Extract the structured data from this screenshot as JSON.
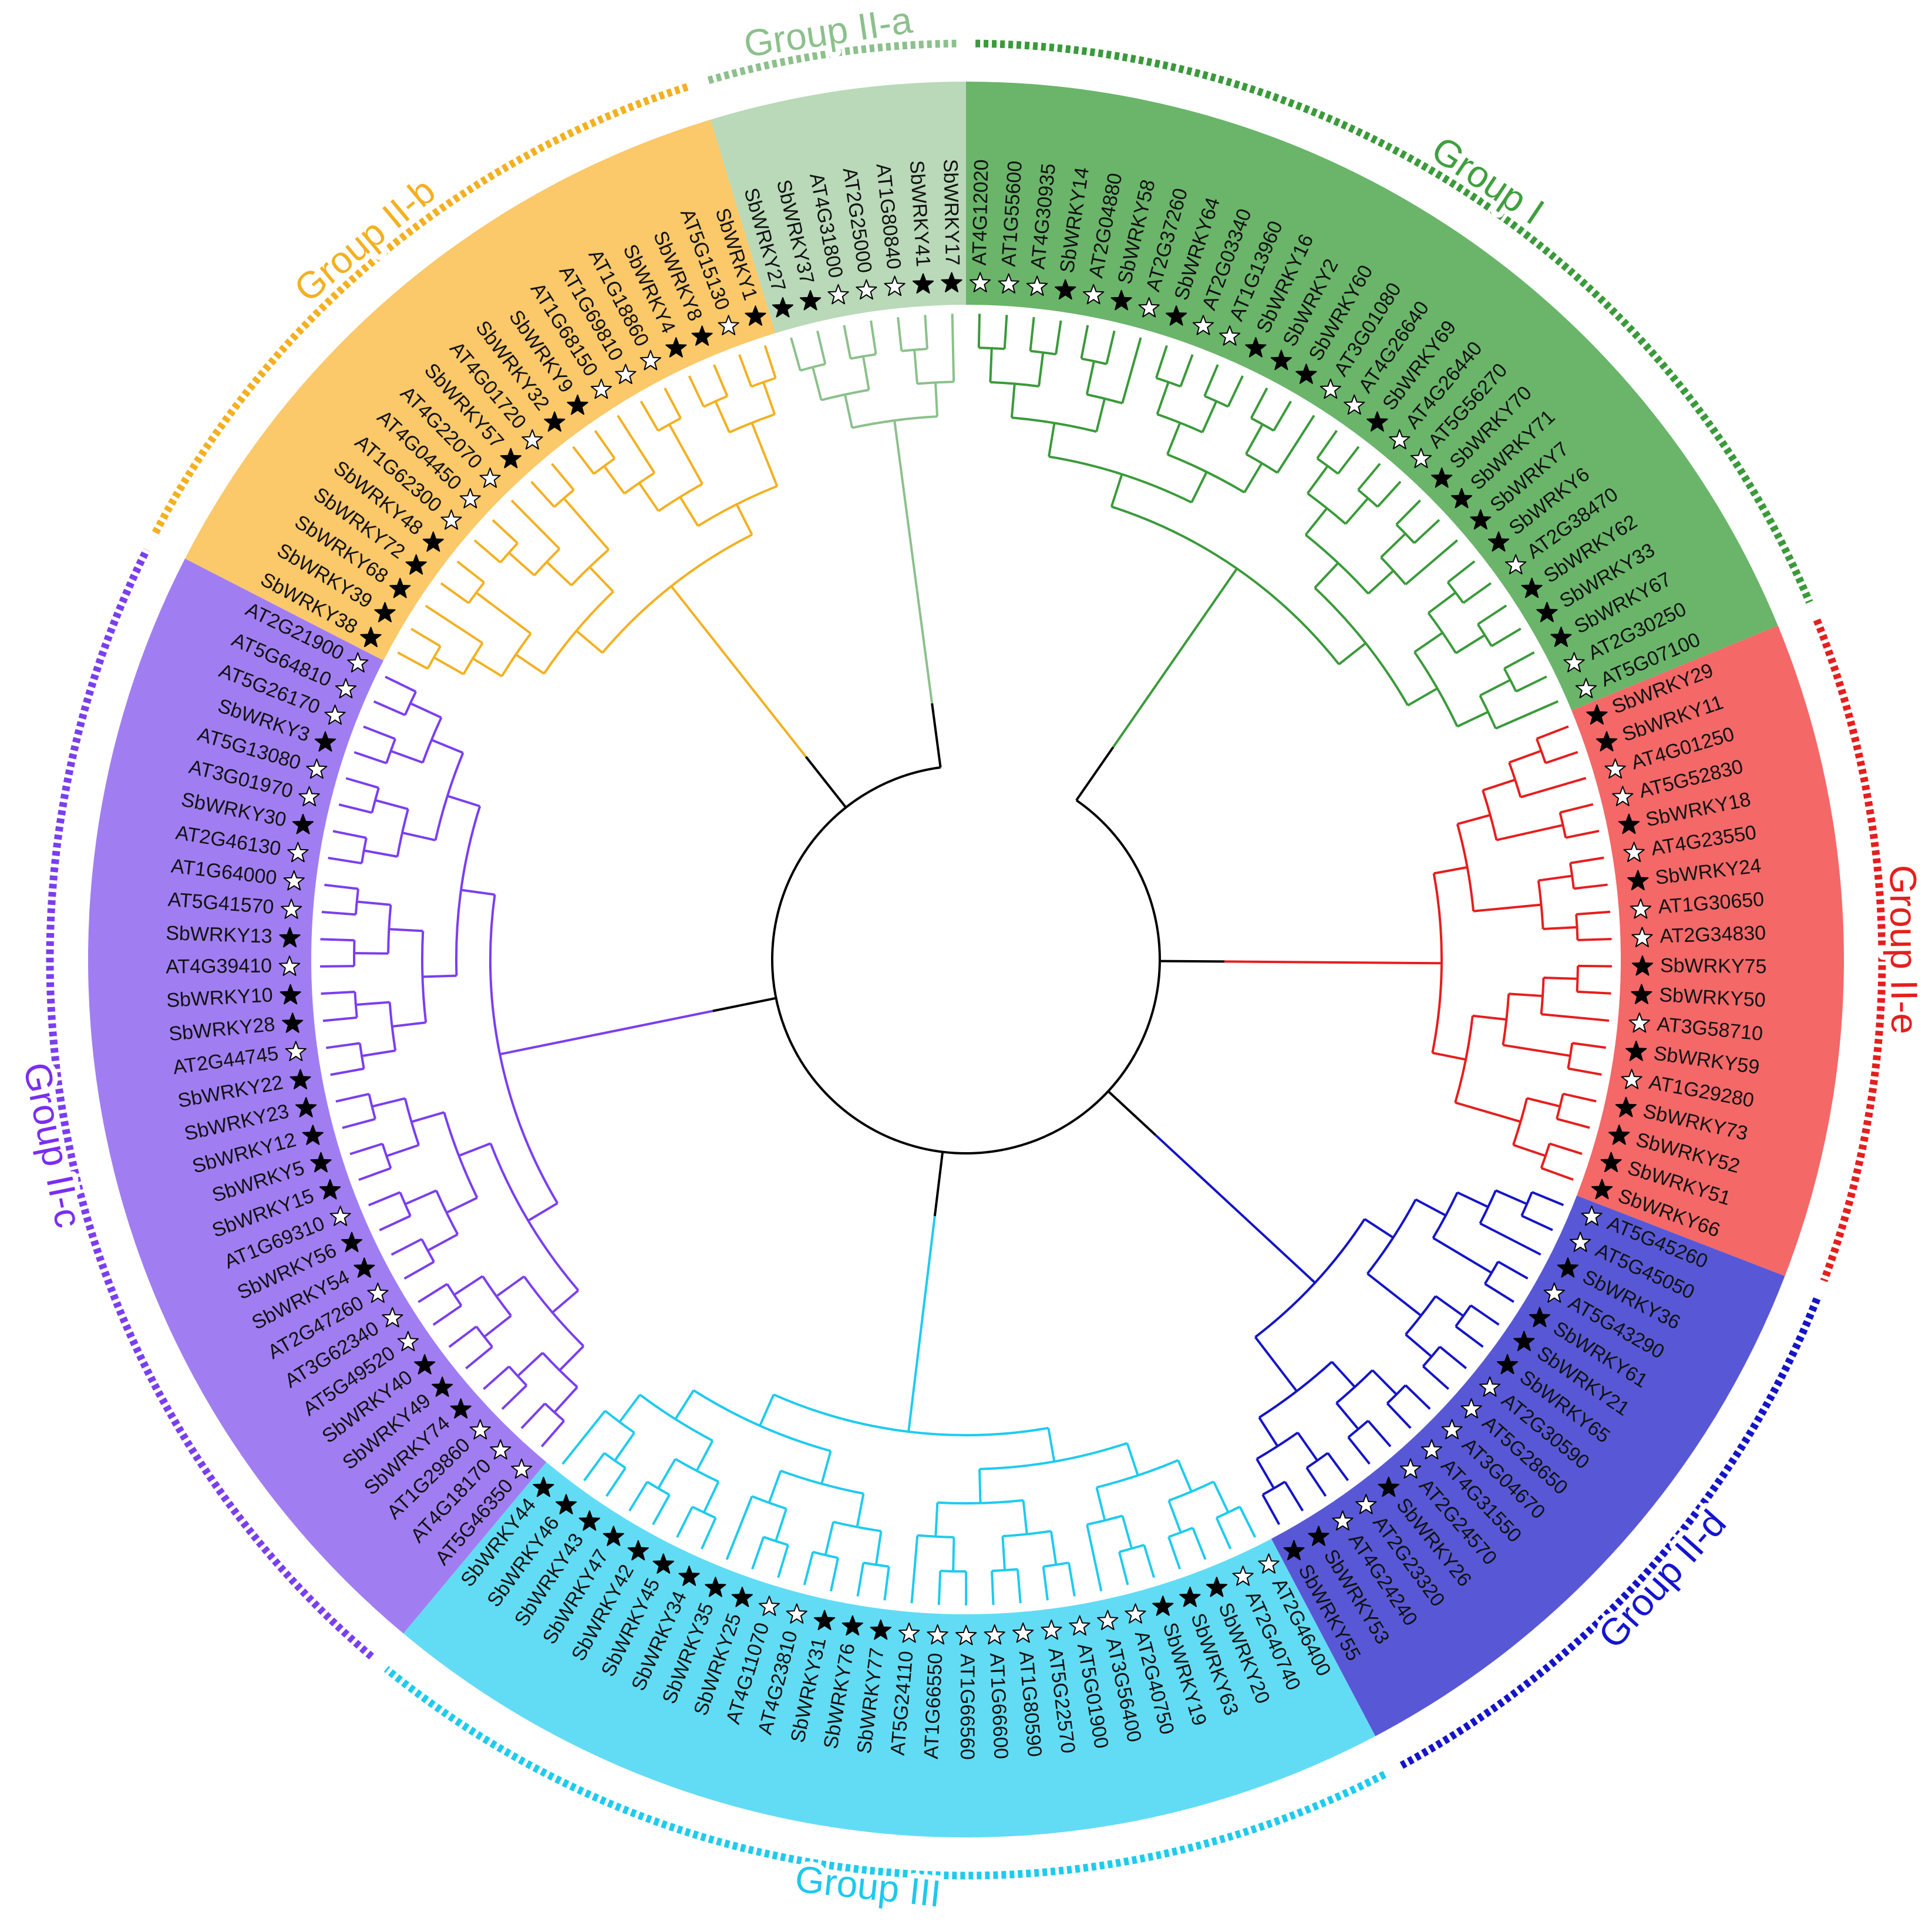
{
  "groups": [
    {
      "name": "Group I",
      "sector_color": "#6ab56a",
      "branch_color": "#3a9a3a",
      "label_color": "#3f9f3f",
      "leaves": [
        {
          "label": "AT4G12020",
          "star": "#ffffff"
        },
        {
          "label": "AT1G55600",
          "star": "#ffffff"
        },
        {
          "label": "AT4G30935",
          "star": "#ffffff"
        },
        {
          "label": "SbWRKY14",
          "star": "#000000"
        },
        {
          "label": "AT2G04880",
          "star": "#ffffff"
        },
        {
          "label": "SbWRKY58",
          "star": "#000000"
        },
        {
          "label": "AT2G37260",
          "star": "#ffffff"
        },
        {
          "label": "SbWRKY64",
          "star": "#000000"
        },
        {
          "label": "AT2G03340",
          "star": "#ffffff"
        },
        {
          "label": "AT1G13960",
          "star": "#ffffff"
        },
        {
          "label": "SbWRKY16",
          "star": "#000000"
        },
        {
          "label": "SbWRKY2",
          "star": "#000000"
        },
        {
          "label": "SbWRKY60",
          "star": "#000000"
        },
        {
          "label": "AT3G01080",
          "star": "#ffffff"
        },
        {
          "label": "AT4G26640",
          "star": "#ffffff"
        },
        {
          "label": "SbWRKY69",
          "star": "#000000"
        },
        {
          "label": "AT4G26440",
          "star": "#ffffff"
        },
        {
          "label": "AT5G56270",
          "star": "#ffffff"
        },
        {
          "label": "SbWRKY70",
          "star": "#000000"
        },
        {
          "label": "SbWRKY71",
          "star": "#000000"
        },
        {
          "label": "SbWRKY7",
          "star": "#000000"
        },
        {
          "label": "SbWRKY6",
          "star": "#000000"
        },
        {
          "label": "AT2G38470",
          "star": "#ffffff"
        },
        {
          "label": "SbWRKY62",
          "star": "#000000"
        },
        {
          "label": "SbWRKY33",
          "star": "#000000"
        },
        {
          "label": "SbWRKY67",
          "star": "#000000"
        },
        {
          "label": "AT2G30250",
          "star": "#ffffff"
        },
        {
          "label": "AT5G07100",
          "star": "#ffffff"
        }
      ]
    },
    {
      "name": "Group II-e",
      "sector_color": "#f46868",
      "branch_color": "#e61e1e",
      "label_color": "#e61e1e",
      "leaves": [
        {
          "label": "SbWRKY29",
          "star": "#000000"
        },
        {
          "label": "SbWRKY11",
          "star": "#000000"
        },
        {
          "label": "AT4G01250",
          "star": "#ffffff"
        },
        {
          "label": "AT5G52830",
          "star": "#ffffff"
        },
        {
          "label": "SbWRKY18",
          "star": "#000000"
        },
        {
          "label": "AT4G23550",
          "star": "#ffffff"
        },
        {
          "label": "SbWRKY24",
          "star": "#000000"
        },
        {
          "label": "AT1G30650",
          "star": "#ffffff"
        },
        {
          "label": "AT2G34830",
          "star": "#ffffff"
        },
        {
          "label": "SbWRKY75",
          "star": "#000000"
        },
        {
          "label": "SbWRKY50",
          "star": "#000000"
        },
        {
          "label": "AT3G58710",
          "star": "#ffffff"
        },
        {
          "label": "SbWRKY59",
          "star": "#000000"
        },
        {
          "label": "AT1G29280",
          "star": "#ffffff"
        },
        {
          "label": "SbWRKY73",
          "star": "#000000"
        },
        {
          "label": "SbWRKY52",
          "star": "#000000"
        },
        {
          "label": "SbWRKY51",
          "star": "#000000"
        },
        {
          "label": "SbWRKY66",
          "star": "#000000"
        }
      ]
    },
    {
      "name": "Group II-d",
      "sector_color": "#5858d6",
      "branch_color": "#1414c8",
      "label_color": "#1414d0",
      "leaves": [
        {
          "label": "AT5G45260",
          "star": "#ffffff"
        },
        {
          "label": "AT5G45050",
          "star": "#ffffff"
        },
        {
          "label": "SbWRKY36",
          "star": "#000000"
        },
        {
          "label": "AT5G43290",
          "star": "#ffffff"
        },
        {
          "label": "SbWRKY61",
          "star": "#000000"
        },
        {
          "label": "SbWRKY21",
          "star": "#000000"
        },
        {
          "label": "SbWRKY65",
          "star": "#000000"
        },
        {
          "label": "AT2G30590",
          "star": "#ffffff"
        },
        {
          "label": "AT5G28650",
          "star": "#ffffff"
        },
        {
          "label": "AT3G04670",
          "star": "#ffffff"
        },
        {
          "label": "AT4G31550",
          "star": "#ffffff"
        },
        {
          "label": "AT2G24570",
          "star": "#ffffff"
        },
        {
          "label": "SbWRKY26",
          "star": "#000000"
        },
        {
          "label": "AT2G23320",
          "star": "#ffffff"
        },
        {
          "label": "AT4G24240",
          "star": "#ffffff"
        },
        {
          "label": "SbWRKY53",
          "star": "#000000"
        },
        {
          "label": "SbWRKY55",
          "star": "#000000"
        }
      ]
    },
    {
      "name": "Group III",
      "sector_color": "#62dcf5",
      "branch_color": "#1ecbee",
      "label_color": "#1ec8ee",
      "leaves": [
        {
          "label": "AT2G46400",
          "star": "#ffffff"
        },
        {
          "label": "AT2G40740",
          "star": "#ffffff"
        },
        {
          "label": "SbWRKY20",
          "star": "#000000"
        },
        {
          "label": "SbWRKY63",
          "star": "#000000"
        },
        {
          "label": "SbWRKY19",
          "star": "#000000"
        },
        {
          "label": "AT2G40750",
          "star": "#ffffff"
        },
        {
          "label": "AT3G56400",
          "star": "#ffffff"
        },
        {
          "label": "AT5G01900",
          "star": "#ffffff"
        },
        {
          "label": "AT5G22570",
          "star": "#ffffff"
        },
        {
          "label": "AT1G80590",
          "star": "#ffffff"
        },
        {
          "label": "AT1G66600",
          "star": "#ffffff"
        },
        {
          "label": "AT1G66560",
          "star": "#ffffff"
        },
        {
          "label": "AT1G66550",
          "star": "#ffffff"
        },
        {
          "label": "AT5G24110",
          "star": "#ffffff"
        },
        {
          "label": "SbWRKY77",
          "star": "#000000"
        },
        {
          "label": "SbWRKY76",
          "star": "#000000"
        },
        {
          "label": "SbWRKY31",
          "star": "#000000"
        },
        {
          "label": "AT4G23810",
          "star": "#ffffff"
        },
        {
          "label": "AT4G11070",
          "star": "#ffffff"
        },
        {
          "label": "SbWRKY25",
          "star": "#000000"
        },
        {
          "label": "SbWRKY35",
          "star": "#000000"
        },
        {
          "label": "SbWRKY34",
          "star": "#000000"
        },
        {
          "label": "SbWRKY45",
          "star": "#000000"
        },
        {
          "label": "SbWRKY42",
          "star": "#000000"
        },
        {
          "label": "SbWRKY47",
          "star": "#000000"
        },
        {
          "label": "SbWRKY43",
          "star": "#000000"
        },
        {
          "label": "SbWRKY46",
          "star": "#000000"
        },
        {
          "label": "SbWRKY44",
          "star": "#000000"
        }
      ]
    },
    {
      "name": "Group II-c",
      "sector_color": "#a07ef2",
      "branch_color": "#7a3ef0",
      "label_color": "#7a2ef0",
      "leaves": [
        {
          "label": "AT5G46350",
          "star": "#ffffff"
        },
        {
          "label": "AT4G18170",
          "star": "#ffffff"
        },
        {
          "label": "AT1G29860",
          "star": "#ffffff"
        },
        {
          "label": "SbWRKY74",
          "star": "#000000"
        },
        {
          "label": "SbWRKY49",
          "star": "#000000"
        },
        {
          "label": "SbWRKY40",
          "star": "#000000"
        },
        {
          "label": "AT5G49520",
          "star": "#ffffff"
        },
        {
          "label": "AT3G62340",
          "star": "#ffffff"
        },
        {
          "label": "AT2G47260",
          "star": "#ffffff"
        },
        {
          "label": "SbWRKY54",
          "star": "#000000"
        },
        {
          "label": "SbWRKY56",
          "star": "#000000"
        },
        {
          "label": "AT1G69310",
          "star": "#ffffff"
        },
        {
          "label": "SbWRKY15",
          "star": "#000000"
        },
        {
          "label": "SbWRKY5",
          "star": "#000000"
        },
        {
          "label": "SbWRKY12",
          "star": "#000000"
        },
        {
          "label": "SbWRKY23",
          "star": "#000000"
        },
        {
          "label": "SbWRKY22",
          "star": "#000000"
        },
        {
          "label": "AT2G44745",
          "star": "#ffffff"
        },
        {
          "label": "SbWRKY28",
          "star": "#000000"
        },
        {
          "label": "SbWRKY10",
          "star": "#000000"
        },
        {
          "label": "AT4G39410",
          "star": "#ffffff"
        },
        {
          "label": "SbWRKY13",
          "star": "#000000"
        },
        {
          "label": "AT5G41570",
          "star": "#ffffff"
        },
        {
          "label": "AT1G64000",
          "star": "#ffffff"
        },
        {
          "label": "AT2G46130",
          "star": "#ffffff"
        },
        {
          "label": "SbWRKY30",
          "star": "#000000"
        },
        {
          "label": "AT3G01970",
          "star": "#ffffff"
        },
        {
          "label": "AT5G13080",
          "star": "#ffffff"
        },
        {
          "label": "SbWRKY3",
          "star": "#000000"
        },
        {
          "label": "AT5G26170",
          "star": "#ffffff"
        },
        {
          "label": "AT5G64810",
          "star": "#ffffff"
        },
        {
          "label": "AT2G21900",
          "star": "#ffffff"
        }
      ]
    },
    {
      "name": "Group II-b",
      "sector_color": "#fbc86a",
      "branch_color": "#f3b020",
      "label_color": "#f3b020",
      "leaves": [
        {
          "label": "SbWRKY38",
          "star": "#000000"
        },
        {
          "label": "SbWRKY39",
          "star": "#000000"
        },
        {
          "label": "SbWRKY68",
          "star": "#000000"
        },
        {
          "label": "SbWRKY72",
          "star": "#000000"
        },
        {
          "label": "SbWRKY48",
          "star": "#000000"
        },
        {
          "label": "AT1G62300",
          "star": "#ffffff"
        },
        {
          "label": "AT4G04450",
          "star": "#ffffff"
        },
        {
          "label": "AT4G22070",
          "star": "#ffffff"
        },
        {
          "label": "SbWRKY57",
          "star": "#000000"
        },
        {
          "label": "AT4G01720",
          "star": "#ffffff"
        },
        {
          "label": "SbWRKY32",
          "star": "#000000"
        },
        {
          "label": "SbWRKY9",
          "star": "#000000"
        },
        {
          "label": "AT1G68150",
          "star": "#ffffff"
        },
        {
          "label": "AT1G69810",
          "star": "#ffffff"
        },
        {
          "label": "AT1G18860",
          "star": "#ffffff"
        },
        {
          "label": "SbWRKY4",
          "star": "#000000"
        },
        {
          "label": "SbWRKY8",
          "star": "#000000"
        },
        {
          "label": "AT5G15130",
          "star": "#ffffff"
        },
        {
          "label": "SbWRKY1",
          "star": "#000000"
        }
      ]
    },
    {
      "name": "Group II-a",
      "sector_color": "#b9d9b9",
      "branch_color": "#8cc08c",
      "label_color": "#8cc08c",
      "leaves": [
        {
          "label": "SbWRKY27",
          "star": "#000000"
        },
        {
          "label": "SbWRKY37",
          "star": "#000000"
        },
        {
          "label": "AT4G31800",
          "star": "#ffffff"
        },
        {
          "label": "AT2G25000",
          "star": "#ffffff"
        },
        {
          "label": "AT1G80840",
          "star": "#ffffff"
        },
        {
          "label": "SbWRKY41",
          "star": "#000000"
        },
        {
          "label": "SbWRKY17",
          "star": "#000000"
        }
      ]
    }
  ]
}
